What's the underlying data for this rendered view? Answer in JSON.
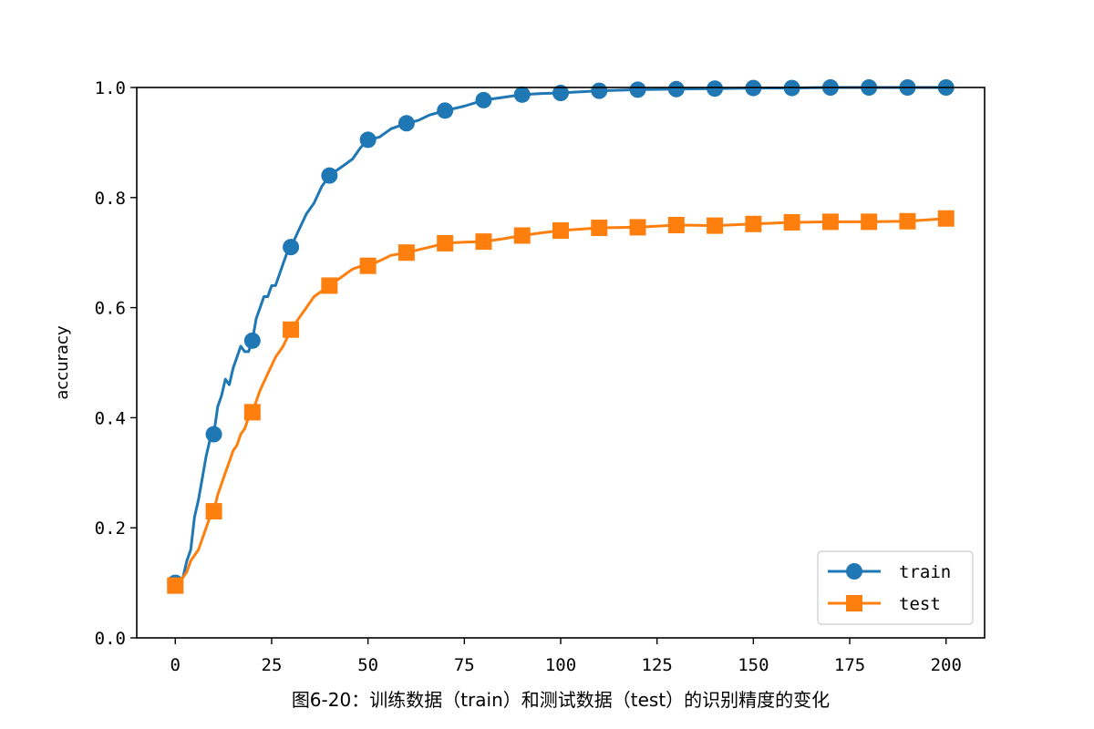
{
  "chart_data": {
    "type": "line",
    "ylabel": "accuracy",
    "caption": "图6-20：训练数据（train）和测试数据（test）的识别精度的变化",
    "xlim": [
      -10,
      210
    ],
    "ylim": [
      0.0,
      1.0
    ],
    "xticks": [
      "0",
      "25",
      "50",
      "75",
      "100",
      "125",
      "150",
      "175",
      "200"
    ],
    "xtick_values": [
      0,
      25,
      50,
      75,
      100,
      125,
      150,
      175,
      200
    ],
    "yticks": [
      "0.0",
      "0.2",
      "0.4",
      "0.6",
      "0.8",
      "1.0"
    ],
    "ytick_values": [
      0.0,
      0.2,
      0.4,
      0.6,
      0.8,
      1.0
    ],
    "legend_position": "lower-right",
    "grid": false,
    "series": [
      {
        "name": "train",
        "color": "#1f77b4",
        "marker": "circle",
        "marker_x": [
          0,
          10,
          20,
          30,
          40,
          50,
          60,
          70,
          80,
          90,
          100,
          110,
          120,
          130,
          140,
          150,
          160,
          170,
          180,
          190,
          200
        ],
        "marker_y": [
          0.1,
          0.37,
          0.54,
          0.71,
          0.84,
          0.905,
          0.935,
          0.958,
          0.977,
          0.987,
          0.99,
          0.994,
          0.996,
          0.997,
          0.998,
          0.999,
          0.999,
          1.0,
          1.0,
          1.0,
          1.0
        ],
        "x": [
          0,
          1,
          2,
          3,
          4,
          5,
          6,
          7,
          8,
          9,
          10,
          11,
          12,
          13,
          14,
          15,
          16,
          17,
          18,
          19,
          20,
          21,
          22,
          23,
          24,
          25,
          26,
          27,
          28,
          29,
          30,
          32,
          34,
          36,
          38,
          40,
          42,
          44,
          46,
          48,
          50,
          53,
          56,
          60,
          63,
          66,
          70,
          75,
          80,
          85,
          90,
          95,
          100,
          110,
          120,
          130,
          140,
          150,
          160,
          170,
          180,
          190,
          200
        ],
        "y": [
          0.1,
          0.1,
          0.11,
          0.14,
          0.16,
          0.22,
          0.25,
          0.29,
          0.33,
          0.36,
          0.37,
          0.42,
          0.44,
          0.47,
          0.46,
          0.49,
          0.51,
          0.53,
          0.52,
          0.52,
          0.54,
          0.58,
          0.6,
          0.62,
          0.62,
          0.64,
          0.64,
          0.66,
          0.68,
          0.7,
          0.71,
          0.74,
          0.77,
          0.79,
          0.82,
          0.84,
          0.85,
          0.86,
          0.87,
          0.89,
          0.905,
          0.91,
          0.925,
          0.935,
          0.94,
          0.95,
          0.958,
          0.966,
          0.977,
          0.982,
          0.987,
          0.989,
          0.99,
          0.994,
          0.996,
          0.997,
          0.998,
          0.999,
          0.999,
          1.0,
          1.0,
          1.0,
          1.0
        ]
      },
      {
        "name": "test",
        "color": "#ff7f0e",
        "marker": "square",
        "marker_x": [
          0,
          10,
          20,
          30,
          40,
          50,
          60,
          70,
          80,
          90,
          100,
          110,
          120,
          130,
          140,
          150,
          160,
          170,
          180,
          190,
          200
        ],
        "marker_y": [
          0.095,
          0.23,
          0.41,
          0.56,
          0.64,
          0.676,
          0.7,
          0.717,
          0.72,
          0.731,
          0.74,
          0.745,
          0.746,
          0.75,
          0.749,
          0.752,
          0.755,
          0.756,
          0.756,
          0.757,
          0.762
        ],
        "x": [
          0,
          1,
          2,
          3,
          4,
          5,
          6,
          7,
          8,
          9,
          10,
          11,
          12,
          13,
          14,
          15,
          16,
          17,
          18,
          19,
          20,
          22,
          24,
          26,
          28,
          30,
          32,
          34,
          36,
          38,
          40,
          42,
          44,
          46,
          48,
          50,
          53,
          56,
          60,
          63,
          66,
          70,
          75,
          80,
          85,
          90,
          95,
          100,
          110,
          120,
          130,
          140,
          150,
          160,
          170,
          180,
          190,
          200
        ],
        "y": [
          0.095,
          0.1,
          0.11,
          0.12,
          0.14,
          0.15,
          0.16,
          0.18,
          0.2,
          0.22,
          0.23,
          0.26,
          0.28,
          0.3,
          0.32,
          0.34,
          0.35,
          0.37,
          0.38,
          0.4,
          0.41,
          0.45,
          0.48,
          0.51,
          0.53,
          0.56,
          0.58,
          0.6,
          0.62,
          0.63,
          0.64,
          0.65,
          0.66,
          0.67,
          0.675,
          0.676,
          0.685,
          0.695,
          0.7,
          0.705,
          0.71,
          0.717,
          0.719,
          0.72,
          0.725,
          0.731,
          0.736,
          0.74,
          0.745,
          0.746,
          0.75,
          0.749,
          0.752,
          0.755,
          0.756,
          0.756,
          0.757,
          0.762
        ]
      }
    ]
  }
}
